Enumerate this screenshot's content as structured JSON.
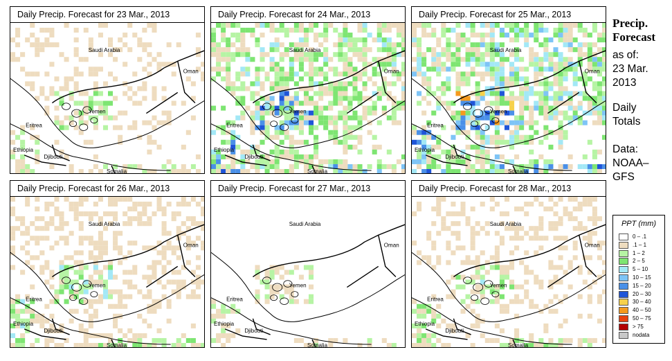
{
  "panels": [
    {
      "title": "Daily Precip. Forecast for  23 Mar., 2013",
      "day": 0
    },
    {
      "title": "Daily Precip. Forecast for  24 Mar., 2013",
      "day": 1
    },
    {
      "title": "Daily Precip. Forecast for  25 Mar., 2013",
      "day": 2
    },
    {
      "title": "Daily Precip. Forecast for  26 Mar., 2013",
      "day": 3
    },
    {
      "title": "Daily Precip. Forecast for  27 Mar., 2013",
      "day": 4
    },
    {
      "title": "Daily Precip. Forecast for  28 Mar., 2013",
      "day": 5
    }
  ],
  "map_labels": {
    "saudi": "Saudi Arabia",
    "oman": "Oman",
    "yemen": "Yemen",
    "eritrea": "Eritrea",
    "ethiopia": "Ethiopia",
    "djibouti": "Djibouti",
    "somalia": "Somalia"
  },
  "sidebar": {
    "title_line1": "Precip.",
    "title_line2": "Forecast",
    "asof_line1": "as of:",
    "asof_line2": "23 Mar.",
    "asof_line3": "2013",
    "totals_line1": "Daily",
    "totals_line2": "Totals",
    "data_line1": "Data:",
    "data_line2": "NOAA–",
    "data_line3": "GFS"
  },
  "legend": {
    "title": "PPT (mm)",
    "items": [
      {
        "label": "0 – .1",
        "color": "#ffffff"
      },
      {
        "label": ".1 – 1",
        "color": "#eedcbf"
      },
      {
        "label": "1 – 2",
        "color": "#b6f4a4"
      },
      {
        "label": "2 – 5",
        "color": "#7ee572"
      },
      {
        "label": "5 – 10",
        "color": "#a3e8f6"
      },
      {
        "label": "10 – 15",
        "color": "#7ec4f6"
      },
      {
        "label": "15 – 20",
        "color": "#4a90e8"
      },
      {
        "label": "20 – 30",
        "color": "#1f55d8"
      },
      {
        "label": "30 – 40",
        "color": "#f6d14a"
      },
      {
        "label": "40 – 50",
        "color": "#f59a1e"
      },
      {
        "label": "50 – 75",
        "color": "#e8420f"
      },
      {
        "label": "> 75",
        "color": "#b30000"
      },
      {
        "label": "nodata",
        "color": "#c8c8c8"
      }
    ]
  }
}
